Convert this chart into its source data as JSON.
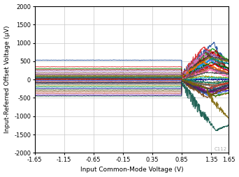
{
  "xlabel": "Input Common-Mode Voltage (V)",
  "ylabel": "Input-Referred Offset Voltage (µV)",
  "xlim": [
    -1.65,
    1.65
  ],
  "ylim": [
    -2000,
    2000
  ],
  "xticks": [
    -1.65,
    -1.15,
    -0.65,
    -0.15,
    0.35,
    0.85,
    1.35,
    1.65
  ],
  "yticks": [
    -2000,
    -1500,
    -1000,
    -500,
    0,
    500,
    1000,
    1500,
    2000
  ],
  "background_color": "#ffffff",
  "grid_color": "#c8c8c8",
  "annotation": "C112",
  "seed": 42,
  "colors": [
    "#1f4e9c",
    "#e03030",
    "#2ca02c",
    "#8b0000",
    "#9467bd",
    "#6b3a2a",
    "#e377c2",
    "#404040",
    "#808000",
    "#008b8b",
    "#1e90ff",
    "#ff6600",
    "#006400",
    "#cc0000",
    "#7b4f9e",
    "#a0522d",
    "#ff69b4",
    "#505050",
    "#999900",
    "#20b2aa",
    "#00008b",
    "#556b2f",
    "#8b4513",
    "#b22222",
    "#6a0dad",
    "#4169e1",
    "#d2691e",
    "#228b22",
    "#8b008b",
    "#696969",
    "#c0392b",
    "#1a5276",
    "#117a65",
    "#784212",
    "#4a235a",
    "#2e4053",
    "#7d6608",
    "#0b5345",
    "#641e16",
    "#1b2631"
  ]
}
